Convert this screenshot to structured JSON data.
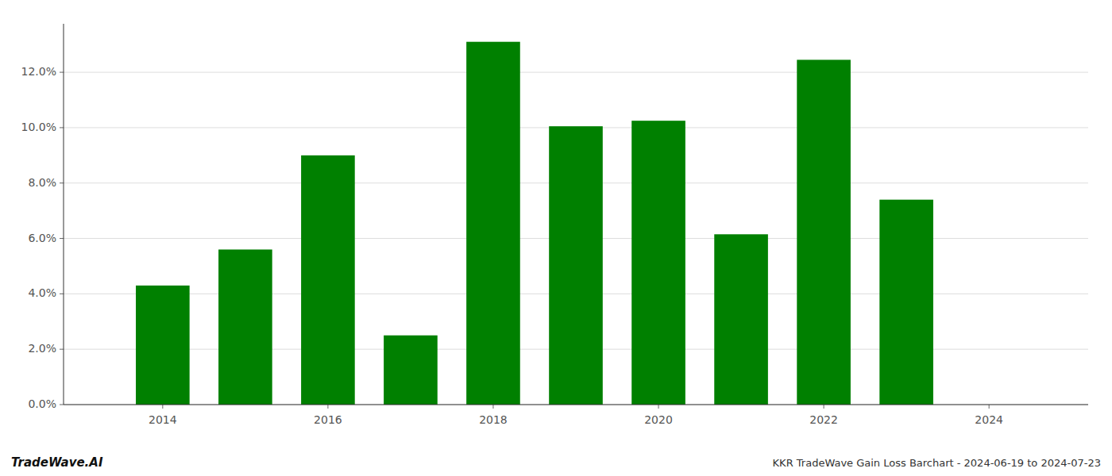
{
  "chart_data": {
    "type": "bar",
    "title": "KKR TradeWave Gain Loss Barchart - 2024-06-19 to 2024-07-23",
    "annotations": [
      "TradeWave.AI"
    ],
    "x": [
      2014,
      2015,
      2016,
      2017,
      2018,
      2019,
      2020,
      2021,
      2022,
      2023
    ],
    "values": [
      0.043,
      0.056,
      0.09,
      0.025,
      0.131,
      0.1005,
      0.1025,
      0.0615,
      0.1245,
      0.074
    ],
    "color": "#008000",
    "xlim": [
      2012.8,
      2025.2
    ],
    "xticks": [
      2014,
      2016,
      2018,
      2020,
      2022,
      2024
    ],
    "ylim": [
      0,
      0.1375
    ],
    "yticks": [
      {
        "value": 0.0,
        "label": "0.0%"
      },
      {
        "value": 0.02,
        "label": "2.0%"
      },
      {
        "value": 0.04,
        "label": "4.0%"
      },
      {
        "value": 0.06,
        "label": "6.0%"
      },
      {
        "value": 0.08,
        "label": "8.0%"
      },
      {
        "value": 0.1,
        "label": "10.0%"
      },
      {
        "value": 0.12,
        "label": "12.0%"
      }
    ],
    "grid": true
  }
}
